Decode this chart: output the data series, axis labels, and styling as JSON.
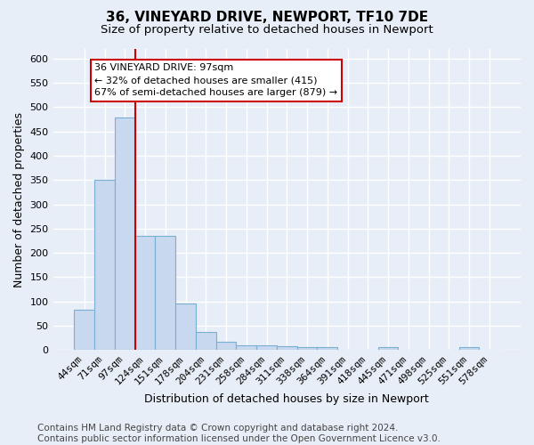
{
  "title_line1": "36, VINEYARD DRIVE, NEWPORT, TF10 7DE",
  "title_line2": "Size of property relative to detached houses in Newport",
  "xlabel": "Distribution of detached houses by size in Newport",
  "ylabel": "Number of detached properties",
  "categories": [
    "44sqm",
    "71sqm",
    "97sqm",
    "124sqm",
    "151sqm",
    "178sqm",
    "204sqm",
    "231sqm",
    "258sqm",
    "284sqm",
    "311sqm",
    "338sqm",
    "364sqm",
    "391sqm",
    "418sqm",
    "445sqm",
    "471sqm",
    "498sqm",
    "525sqm",
    "551sqm",
    "578sqm"
  ],
  "values": [
    82,
    350,
    478,
    235,
    235,
    96,
    37,
    17,
    9,
    9,
    8,
    5,
    5,
    0,
    0,
    5,
    0,
    0,
    0,
    5,
    0
  ],
  "bar_color": "#c8d8ee",
  "bar_edge_color": "#7aafd4",
  "highlight_x": "97sqm",
  "highlight_line_color": "#cc0000",
  "annotation_text": "36 VINEYARD DRIVE: 97sqm\n← 32% of detached houses are smaller (415)\n67% of semi-detached houses are larger (879) →",
  "annotation_box_color": "white",
  "annotation_box_edge_color": "#cc0000",
  "ylim": [
    0,
    620
  ],
  "yticks": [
    0,
    50,
    100,
    150,
    200,
    250,
    300,
    350,
    400,
    450,
    500,
    550,
    600
  ],
  "footer_line1": "Contains HM Land Registry data © Crown copyright and database right 2024.",
  "footer_line2": "Contains public sector information licensed under the Open Government Licence v3.0.",
  "bg_color": "#e8eef7",
  "plot_bg_color": "#e8eef7",
  "grid_color": "white",
  "title_fontsize": 11,
  "subtitle_fontsize": 9.5,
  "axis_label_fontsize": 9,
  "tick_fontsize": 8,
  "footer_fontsize": 7.5,
  "annotation_fontsize": 8
}
